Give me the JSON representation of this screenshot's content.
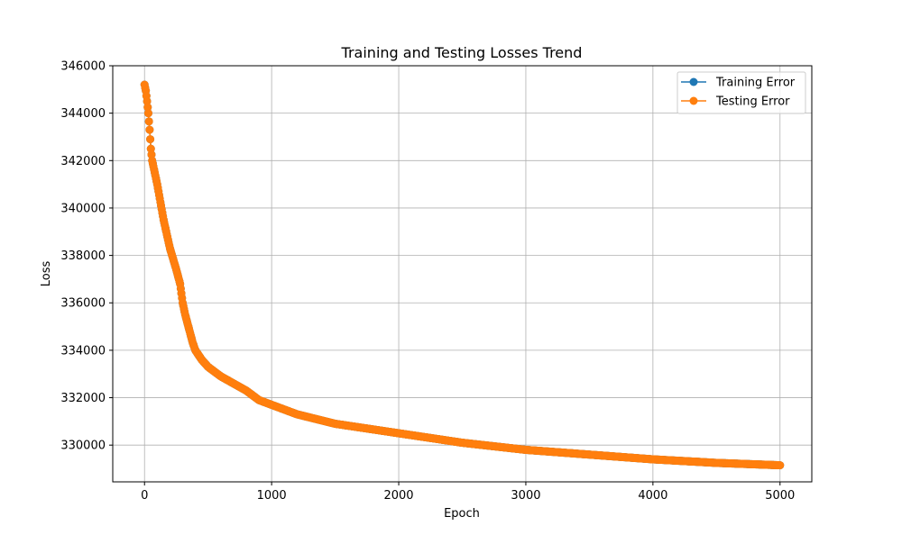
{
  "chart_data": {
    "type": "line",
    "title": "Training and Testing Losses Trend",
    "xlabel": "Epoch",
    "ylabel": "Loss",
    "xlim": [
      -250,
      5250
    ],
    "ylim": [
      328450,
      346000
    ],
    "xticks": [
      0,
      1000,
      2000,
      3000,
      4000,
      5000
    ],
    "xtick_labels": [
      "0",
      "1000",
      "2000",
      "3000",
      "4000",
      "5000"
    ],
    "yticks": [
      330000,
      332000,
      334000,
      336000,
      338000,
      340000,
      342000,
      344000,
      346000
    ],
    "ytick_labels": [
      "330000",
      "332000",
      "334000",
      "336000",
      "338000",
      "340000",
      "342000",
      "344000",
      "346000"
    ],
    "grid": true,
    "legend_position": "top-right",
    "markers": "circle",
    "series": [
      {
        "name": "Training Error",
        "color": "#1f77b4",
        "x": [
          0,
          10,
          20,
          30,
          40,
          50,
          60,
          80,
          100,
          150,
          200,
          250,
          280,
          300,
          320,
          350,
          380,
          400,
          450,
          500,
          600,
          700,
          800,
          900,
          950,
          1000,
          1200,
          1500,
          2000,
          2500,
          3000,
          3500,
          4000,
          4500,
          5000
        ],
        "y": [
          345200,
          344950,
          344500,
          344000,
          343300,
          342500,
          342000,
          341500,
          341000,
          339500,
          338300,
          337400,
          336800,
          336000,
          335500,
          334900,
          334300,
          334000,
          333600,
          333300,
          332900,
          332600,
          332300,
          331900,
          331800,
          331700,
          331300,
          330900,
          330500,
          330100,
          329800,
          329600,
          329400,
          329250,
          329150
        ]
      },
      {
        "name": "Testing Error",
        "color": "#ff7f0e",
        "x": [
          0,
          10,
          20,
          30,
          40,
          50,
          60,
          80,
          100,
          150,
          200,
          250,
          280,
          300,
          320,
          350,
          380,
          400,
          450,
          500,
          600,
          700,
          800,
          900,
          950,
          1000,
          1200,
          1500,
          2000,
          2500,
          3000,
          3500,
          4000,
          4500,
          5000
        ],
        "y": [
          345200,
          344950,
          344500,
          344000,
          343300,
          342500,
          342000,
          341500,
          341000,
          339500,
          338300,
          337400,
          336800,
          336000,
          335500,
          334900,
          334300,
          334000,
          333600,
          333300,
          332900,
          332600,
          332300,
          331900,
          331800,
          331700,
          331300,
          330900,
          330500,
          330100,
          329800,
          329600,
          329400,
          329250,
          329150
        ]
      }
    ]
  }
}
